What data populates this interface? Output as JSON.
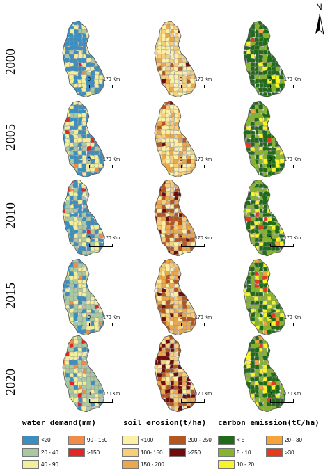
{
  "north_arrow": "N",
  "years": [
    "2000",
    "2005",
    "2010",
    "2015",
    "2020"
  ],
  "scale": {
    "zero": "0",
    "distance": "170 Km"
  },
  "legends": {
    "water": {
      "title": "water demand(mm)",
      "items": [
        {
          "label": "<20",
          "color": "#3b8fc0"
        },
        {
          "label": "20 - 40",
          "color": "#a8c9a2"
        },
        {
          "label": "40 - 90",
          "color": "#f3ee9a"
        },
        {
          "label": "90 - 150",
          "color": "#f08c47"
        },
        {
          "label": ">150",
          "color": "#e02626"
        }
      ]
    },
    "erosion": {
      "title": "soil erosion(t/ha)",
      "items": [
        {
          "label": "<100",
          "color": "#fbf0a6"
        },
        {
          "label": "100- 150",
          "color": "#f7cf7b"
        },
        {
          "label": "150 - 200",
          "color": "#eba84a"
        },
        {
          "label": "200 - 250",
          "color": "#b4561f"
        },
        {
          "label": ">250",
          "color": "#6e0d0d"
        }
      ]
    },
    "carbon": {
      "title": "carbon emission(tC/ha)",
      "items": [
        {
          "label": "< 5",
          "color": "#1f6b1a"
        },
        {
          "label": "5 - 10",
          "color": "#86b52d"
        },
        {
          "label": "10 - 20",
          "color": "#f7f52a"
        },
        {
          "label": "20 - 30",
          "color": "#f4a43a"
        },
        {
          "label": ">30",
          "color": "#e43b1f"
        }
      ]
    }
  }
}
